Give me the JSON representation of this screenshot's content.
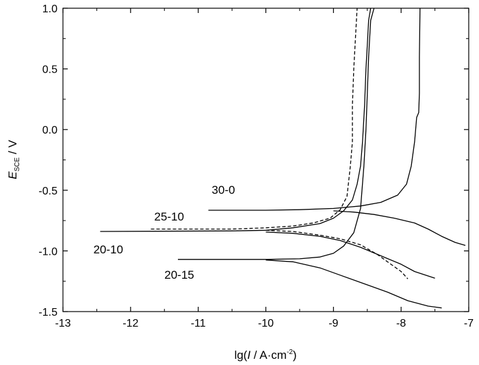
{
  "chart_data": {
    "type": "line",
    "title": "",
    "xlabel": {
      "pre": "lg(",
      "italic": "I",
      "post": " / A·cm",
      "sup": "-2",
      "close": ")"
    },
    "ylabel": {
      "italic": "E",
      "sub": "SCE",
      "post": " / V"
    },
    "xlim": [
      -13,
      -7
    ],
    "ylim": [
      -1.5,
      1.0
    ],
    "xticks": [
      -13,
      -12,
      -11,
      -10,
      -9,
      -8,
      -7
    ],
    "yticks": [
      -1.5,
      -1.0,
      -0.5,
      0.0,
      0.5,
      1.0
    ],
    "xtick_labels": [
      "-13",
      "-12",
      "-11",
      "-10",
      "-9",
      "-8",
      "-7"
    ],
    "ytick_labels": [
      "-1.5",
      "-1.0",
      "-0.5",
      "0.0",
      "0.5",
      "1.0"
    ],
    "grid": false,
    "series": [
      {
        "name": "30-0",
        "label_at": [
          -10.8,
          -0.53
        ],
        "dash": "solid",
        "anodic": [
          [
            -10.85,
            -0.665
          ],
          [
            -10.0,
            -0.665
          ],
          [
            -9.5,
            -0.66
          ],
          [
            -9.0,
            -0.65
          ],
          [
            -8.6,
            -0.63
          ],
          [
            -8.3,
            -0.6
          ],
          [
            -8.05,
            -0.54
          ],
          [
            -7.92,
            -0.45
          ],
          [
            -7.85,
            -0.3
          ],
          [
            -7.8,
            -0.1
          ],
          [
            -7.77,
            0.1
          ],
          [
            -7.74,
            0.14
          ],
          [
            -7.73,
            0.3
          ],
          [
            -7.73,
            0.6
          ],
          [
            -7.72,
            1.0
          ]
        ],
        "cathodic": [
          [
            -9.0,
            -0.67
          ],
          [
            -8.7,
            -0.68
          ],
          [
            -8.4,
            -0.7
          ],
          [
            -8.1,
            -0.73
          ],
          [
            -7.8,
            -0.77
          ],
          [
            -7.6,
            -0.82
          ],
          [
            -7.4,
            -0.88
          ],
          [
            -7.2,
            -0.93
          ],
          [
            -7.05,
            -0.955
          ]
        ]
      },
      {
        "name": "25-10",
        "label_at": [
          -11.65,
          -0.75
        ],
        "dash": "dashed",
        "anodic": [
          [
            -11.7,
            -0.82
          ],
          [
            -10.5,
            -0.82
          ],
          [
            -10.0,
            -0.81
          ],
          [
            -9.6,
            -0.795
          ],
          [
            -9.3,
            -0.77
          ],
          [
            -9.05,
            -0.73
          ],
          [
            -8.9,
            -0.66
          ],
          [
            -8.8,
            -0.55
          ],
          [
            -8.75,
            -0.3
          ],
          [
            -8.72,
            -0.1
          ],
          [
            -8.72,
            0.2
          ],
          [
            -8.7,
            0.5
          ],
          [
            -8.67,
            0.8
          ],
          [
            -8.65,
            1.0
          ]
        ],
        "cathodic": [
          [
            -10.0,
            -0.83
          ],
          [
            -9.6,
            -0.84
          ],
          [
            -9.2,
            -0.87
          ],
          [
            -8.9,
            -0.9
          ],
          [
            -8.6,
            -0.95
          ],
          [
            -8.35,
            -1.03
          ],
          [
            -8.15,
            -1.11
          ],
          [
            -8.0,
            -1.17
          ],
          [
            -7.9,
            -1.23
          ]
        ]
      },
      {
        "name": "20-10",
        "label_at": [
          -12.55,
          -1.02
        ],
        "dash": "solid",
        "anodic": [
          [
            -12.45,
            -0.84
          ],
          [
            -10.5,
            -0.835
          ],
          [
            -10.0,
            -0.83
          ],
          [
            -9.6,
            -0.81
          ],
          [
            -9.2,
            -0.775
          ],
          [
            -9.0,
            -0.73
          ],
          [
            -8.85,
            -0.67
          ],
          [
            -8.72,
            -0.58
          ],
          [
            -8.65,
            -0.45
          ],
          [
            -8.6,
            -0.3
          ],
          [
            -8.57,
            -0.1
          ],
          [
            -8.54,
            0.2
          ],
          [
            -8.52,
            0.5
          ],
          [
            -8.5,
            0.7
          ],
          [
            -8.48,
            0.9
          ],
          [
            -8.45,
            1.0
          ]
        ],
        "cathodic": [
          [
            -10.0,
            -0.845
          ],
          [
            -9.6,
            -0.855
          ],
          [
            -9.2,
            -0.88
          ],
          [
            -8.9,
            -0.915
          ],
          [
            -8.6,
            -0.97
          ],
          [
            -8.3,
            -1.04
          ],
          [
            -8.0,
            -1.11
          ],
          [
            -7.8,
            -1.17
          ],
          [
            -7.5,
            -1.225
          ]
        ]
      },
      {
        "name": "20-15",
        "label_at": [
          -11.5,
          -1.23
        ],
        "dash": "solid",
        "anodic": [
          [
            -11.3,
            -1.07
          ],
          [
            -10.0,
            -1.07
          ],
          [
            -9.5,
            -1.065
          ],
          [
            -9.2,
            -1.05
          ],
          [
            -9.0,
            -1.02
          ],
          [
            -8.85,
            -0.96
          ],
          [
            -8.7,
            -0.85
          ],
          [
            -8.6,
            -0.65
          ],
          [
            -8.55,
            -0.3
          ],
          [
            -8.52,
            0.0
          ],
          [
            -8.5,
            0.3
          ],
          [
            -8.48,
            0.6
          ],
          [
            -8.45,
            0.9
          ],
          [
            -8.4,
            1.0
          ]
        ],
        "cathodic": [
          [
            -10.0,
            -1.075
          ],
          [
            -9.6,
            -1.09
          ],
          [
            -9.2,
            -1.14
          ],
          [
            -8.9,
            -1.2
          ],
          [
            -8.5,
            -1.28
          ],
          [
            -8.2,
            -1.34
          ],
          [
            -7.9,
            -1.41
          ],
          [
            -7.6,
            -1.455
          ],
          [
            -7.4,
            -1.47
          ]
        ]
      }
    ],
    "line_color": "#000000"
  }
}
